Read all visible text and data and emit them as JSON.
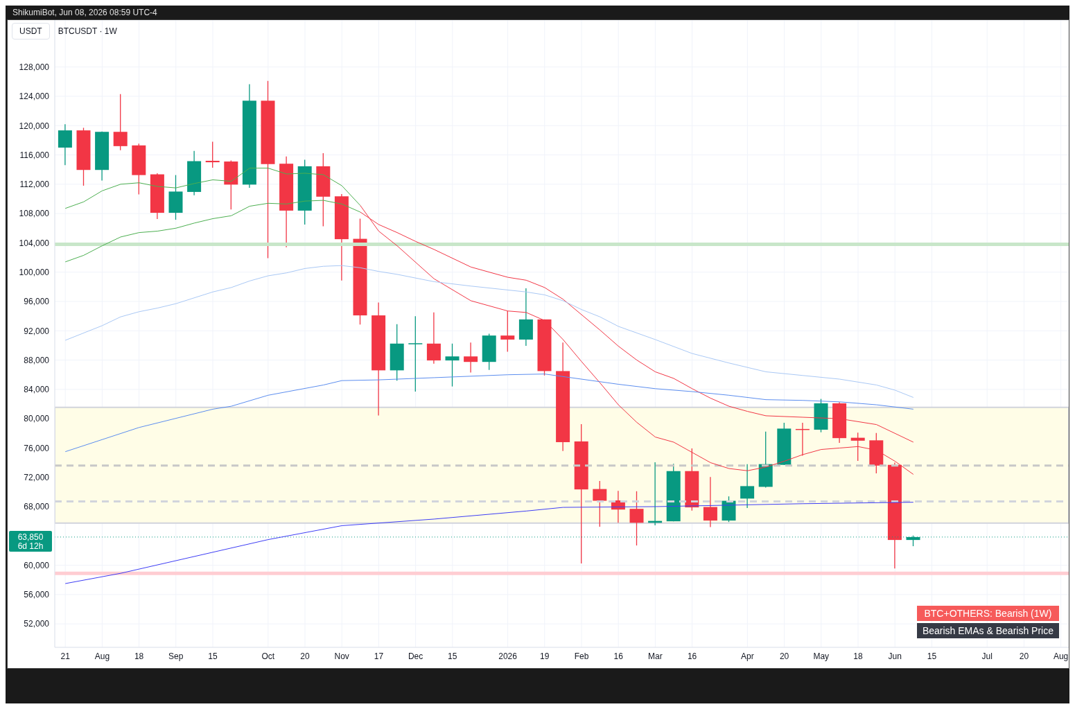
{
  "chart_data": {
    "type": "candlestick",
    "title": "BTCUSDT · 1W",
    "annotations": [
      "ShikumiBot, Jun 08, 2026 08:59 UTC-4",
      "USDT",
      "6d 12h",
      "BTC+OTHERS: Bearish (1W)",
      "Bearish EMAs & Bearish Price"
    ],
    "x": [
      "2025-07-21",
      "2025-07-28",
      "2025-08-04",
      "2025-08-11",
      "2025-08-18",
      "2025-08-25",
      "2025-09-01",
      "2025-09-08",
      "2025-09-15",
      "2025-09-22",
      "2025-09-29",
      "2025-10-06",
      "2025-10-13",
      "2025-10-20",
      "2025-10-27",
      "2025-11-03",
      "2025-11-10",
      "2025-11-17",
      "2025-11-24",
      "2025-12-01",
      "2025-12-08",
      "2025-12-15",
      "2025-12-22",
      "2025-12-29",
      "2026-01-05",
      "2026-01-12",
      "2026-01-19",
      "2026-01-26",
      "2026-02-02",
      "2026-02-09",
      "2026-02-16",
      "2026-02-23",
      "2026-03-02",
      "2026-03-09",
      "2026-03-16",
      "2026-03-23",
      "2026-03-30",
      "2026-04-06",
      "2026-04-13",
      "2026-04-20",
      "2026-04-27",
      "2026-05-04",
      "2026-05-11",
      "2026-05-18",
      "2026-05-25",
      "2026-06-01",
      "2026-06-08"
    ],
    "ohlc": [
      [
        117000,
        120200,
        114600,
        119350
      ],
      [
        119350,
        119700,
        111800,
        113950
      ],
      [
        113950,
        119200,
        112500,
        119150
      ],
      [
        119150,
        124300,
        116650,
        117200
      ],
      [
        117300,
        117550,
        110600,
        113250
      ],
      [
        113350,
        113500,
        107250,
        108100
      ],
      [
        108100,
        113250,
        107150,
        111000
      ],
      [
        110950,
        116550,
        110500,
        115150
      ],
      [
        115200,
        117800,
        114250,
        115000
      ],
      [
        115100,
        115250,
        108550,
        111950
      ],
      [
        111950,
        125650,
        111500,
        123400
      ],
      [
        123400,
        126100,
        101900,
        114750
      ],
      [
        114800,
        115800,
        103400,
        108400
      ],
      [
        108400,
        115350,
        106500,
        114450
      ],
      [
        114450,
        116250,
        106250,
        110300
      ],
      [
        110350,
        110650,
        98850,
        104500
      ],
      [
        104550,
        107300,
        92850,
        94100
      ],
      [
        94100,
        95850,
        80450,
        86600
      ],
      [
        86600,
        92900,
        85200,
        90250
      ],
      [
        90200,
        94000,
        83700,
        90300
      ],
      [
        90250,
        94500,
        87500,
        87950
      ],
      [
        87950,
        90250,
        84400,
        88500
      ],
      [
        88500,
        90400,
        86300,
        87750
      ],
      [
        87750,
        91600,
        86650,
        91350
      ],
      [
        91350,
        94700,
        89150,
        90800
      ],
      [
        90800,
        97800,
        89950,
        93550
      ],
      [
        93550,
        93550,
        85900,
        86500
      ],
      [
        86500,
        90400,
        75600,
        76800
      ],
      [
        76900,
        79250,
        60250,
        70350
      ],
      [
        70400,
        71500,
        65250,
        68800
      ],
      [
        68850,
        70150,
        65800,
        67600
      ],
      [
        67700,
        70100,
        62700,
        65800
      ],
      [
        65800,
        74050,
        65450,
        66050
      ],
      [
        66000,
        73850,
        66000,
        72850
      ],
      [
        72850,
        75950,
        67450,
        67900
      ],
      [
        67950,
        72050,
        65200,
        66100
      ],
      [
        66100,
        69400,
        65900,
        68800
      ],
      [
        69100,
        73800,
        67800,
        70800
      ],
      [
        70700,
        78250,
        70600,
        73800
      ],
      [
        73700,
        79450,
        73700,
        78650
      ],
      [
        78600,
        79450,
        74950,
        78500
      ],
      [
        78500,
        82700,
        78150,
        82100
      ],
      [
        82100,
        82250,
        76700,
        77350
      ],
      [
        77400,
        78100,
        74250,
        77000
      ],
      [
        77050,
        78050,
        72550,
        73600
      ],
      [
        73700,
        74000,
        59550,
        63450
      ],
      [
        63450,
        64050,
        62600,
        63850
      ]
    ],
    "colors": [
      "#089981",
      "#f23645",
      "#089981",
      "#f23645",
      "#f23645",
      "#f23645",
      "#089981",
      "#089981",
      "#f23645",
      "#f23645",
      "#089981",
      "#f23645",
      "#f23645",
      "#089981",
      "#f23645",
      "#f23645",
      "#f23645",
      "#f23645",
      "#089981",
      "#089981",
      "#f23645",
      "#089981",
      "#f23645",
      "#089981",
      "#f23645",
      "#089981",
      "#f23645",
      "#f23645",
      "#f23645",
      "#f23645",
      "#f23645",
      "#f23645",
      "#089981",
      "#089981",
      "#f23645",
      "#f23645",
      "#089981",
      "#089981",
      "#089981",
      "#089981",
      "#f23645",
      "#089981",
      "#f23645",
      "#f23645",
      "#f23645",
      "#f23645",
      "#089981"
    ],
    "series": [
      {
        "type": "line",
        "color": "#4caf50",
        "x": [
          "2025-07-21",
          "2025-07-28",
          "2025-08-04",
          "2025-08-11",
          "2025-08-18",
          "2025-08-25",
          "2025-09-01",
          "2025-09-08",
          "2025-09-15",
          "2025-09-22",
          "2025-09-29",
          "2025-10-06",
          "2025-10-13",
          "2025-10-20",
          "2025-10-27",
          "2025-11-03",
          "2025-11-10"
        ],
        "values": [
          108700,
          109600,
          111100,
          112000,
          112200,
          111700,
          111500,
          112100,
          112600,
          112400,
          114200,
          114200,
          113400,
          113500,
          113300,
          111800,
          109100
        ]
      },
      {
        "type": "line",
        "color": "#4caf50",
        "x": [
          "2025-07-21",
          "2025-07-28",
          "2025-08-04",
          "2025-08-11",
          "2025-08-18",
          "2025-08-25",
          "2025-09-01",
          "2025-09-08",
          "2025-09-15",
          "2025-09-22",
          "2025-09-29",
          "2025-10-06",
          "2025-10-13",
          "2025-10-20",
          "2025-10-27",
          "2025-11-03",
          "2025-11-10"
        ],
        "values": [
          101400,
          102300,
          103600,
          104800,
          105400,
          105600,
          106000,
          106700,
          107300,
          107700,
          109000,
          109400,
          109300,
          109700,
          109800,
          109300,
          108200
        ]
      },
      {
        "type": "line",
        "color": "#f23645",
        "x": [
          "2025-11-10",
          "2025-11-17",
          "2025-11-24",
          "2025-12-08",
          "2025-12-22",
          "2026-01-05",
          "2026-01-12",
          "2026-01-19",
          "2026-01-26",
          "2026-02-02",
          "2026-02-09",
          "2026-02-16",
          "2026-02-23",
          "2026-03-02",
          "2026-03-09",
          "2026-03-16",
          "2026-03-23",
          "2026-03-30",
          "2026-04-06",
          "2026-04-13",
          "2026-04-20",
          "2026-04-27",
          "2026-05-04",
          "2026-05-11",
          "2026-05-18",
          "2026-05-25",
          "2026-06-01",
          "2026-06-08"
        ],
        "values": [
          109100,
          105600,
          103600,
          99100,
          96100,
          94700,
          94500,
          93400,
          90800,
          87800,
          84900,
          81900,
          79500,
          77500,
          76800,
          75400,
          74000,
          73200,
          72900,
          73400,
          74200,
          75100,
          75800,
          76000,
          76200,
          75700,
          74200,
          72400
        ]
      },
      {
        "type": "line",
        "color": "#f23645",
        "x": [
          "2025-11-10",
          "2025-11-17",
          "2025-11-24",
          "2025-12-01",
          "2025-12-08",
          "2025-12-22",
          "2026-01-05",
          "2026-01-12",
          "2026-01-19",
          "2026-01-26",
          "2026-02-02",
          "2026-02-09",
          "2026-02-16",
          "2026-02-23",
          "2026-03-02",
          "2026-03-09",
          "2026-03-16",
          "2026-03-23",
          "2026-03-30",
          "2026-04-06",
          "2026-04-13",
          "2026-04-27",
          "2026-05-11",
          "2026-05-25",
          "2026-06-08"
        ],
        "values": [
          108200,
          106500,
          105400,
          104200,
          103100,
          100700,
          99300,
          98900,
          97900,
          96300,
          94200,
          92100,
          89900,
          88000,
          86400,
          85500,
          84100,
          82800,
          81700,
          81000,
          80400,
          80200,
          80000,
          79200,
          76800
        ]
      },
      {
        "type": "line",
        "color": "#a9c8f5",
        "x": [
          "2025-07-21",
          "2025-08-04",
          "2025-08-11",
          "2025-08-18",
          "2025-08-25",
          "2025-09-01",
          "2025-09-15",
          "2025-09-22",
          "2025-09-29",
          "2025-10-06",
          "2025-10-13",
          "2025-10-20",
          "2025-10-27",
          "2025-11-03",
          "2025-11-10",
          "2025-11-17",
          "2025-11-24",
          "2025-12-08",
          "2025-12-22",
          "2026-01-12",
          "2026-01-19",
          "2026-01-26",
          "2026-02-02",
          "2026-02-09",
          "2026-02-16",
          "2026-03-02",
          "2026-03-16",
          "2026-03-30",
          "2026-04-13",
          "2026-04-27",
          "2026-05-11",
          "2026-05-25",
          "2026-06-01",
          "2026-06-08"
        ],
        "values": [
          90700,
          92700,
          93900,
          94600,
          95100,
          95700,
          97300,
          97900,
          98800,
          99500,
          99900,
          100500,
          100800,
          100900,
          100600,
          100100,
          99700,
          98700,
          98100,
          97300,
          96900,
          96100,
          94900,
          93900,
          92600,
          90800,
          88900,
          87600,
          86400,
          85900,
          85400,
          84600,
          83900,
          82900
        ]
      },
      {
        "type": "line",
        "color": "#5b8def",
        "x": [
          "2025-07-21",
          "2025-08-18",
          "2025-09-15",
          "2025-09-22",
          "2025-10-06",
          "2025-10-27",
          "2025-11-03",
          "2025-11-17",
          "2025-12-08",
          "2026-01-05",
          "2026-01-19",
          "2026-02-02",
          "2026-02-16",
          "2026-03-02",
          "2026-03-16",
          "2026-03-30",
          "2026-04-13",
          "2026-04-27",
          "2026-05-11",
          "2026-05-25",
          "2026-06-08"
        ],
        "values": [
          75500,
          78800,
          81300,
          81700,
          83200,
          84600,
          85200,
          85300,
          85600,
          86000,
          86100,
          85400,
          84700,
          84100,
          83700,
          83200,
          82600,
          82500,
          82300,
          81900,
          81300
        ]
      },
      {
        "type": "line",
        "color": "#3d3df5",
        "x": [
          "2025-07-21",
          "2025-08-11",
          "2025-10-06",
          "2025-11-03",
          "2025-12-08",
          "2026-01-12",
          "2026-01-26",
          "2026-03-02",
          "2026-04-27",
          "2026-06-08"
        ],
        "values": [
          57500,
          58900,
          63500,
          65400,
          66300,
          67400,
          67900,
          68000,
          68400,
          68600
        ]
      }
    ],
    "xlim": [
      "2025-07-17",
      "2026-08-06"
    ],
    "xticks": [
      {
        "value": "2025-07-21",
        "label": "21"
      },
      {
        "value": "2025-08-04",
        "label": "Aug"
      },
      {
        "value": "2025-08-18",
        "label": "18"
      },
      {
        "value": "2025-09-01",
        "label": "Sep"
      },
      {
        "value": "2025-09-15",
        "label": "15"
      },
      {
        "value": "2025-10-06",
        "label": "Oct"
      },
      {
        "value": "2025-10-20",
        "label": "20"
      },
      {
        "value": "2025-11-03",
        "label": "Nov"
      },
      {
        "value": "2025-11-17",
        "label": "17"
      },
      {
        "value": "2025-12-01",
        "label": "Dec"
      },
      {
        "value": "2025-12-15",
        "label": "15"
      },
      {
        "value": "2026-01-05",
        "label": "2026"
      },
      {
        "value": "2026-01-19",
        "label": "19"
      },
      {
        "value": "2026-02-02",
        "label": "Feb"
      },
      {
        "value": "2026-02-16",
        "label": "16"
      },
      {
        "value": "2026-03-02",
        "label": "Mar"
      },
      {
        "value": "2026-03-16",
        "label": "16"
      },
      {
        "value": "2026-04-06",
        "label": "Apr"
      },
      {
        "value": "2026-04-20",
        "label": "20"
      },
      {
        "value": "2026-05-04",
        "label": "May"
      },
      {
        "value": "2026-05-18",
        "label": "18"
      },
      {
        "value": "2026-06-01",
        "label": "Jun"
      },
      {
        "value": "2026-06-15",
        "label": "15"
      },
      {
        "value": "2026-07-06",
        "label": "Jul"
      },
      {
        "value": "2026-07-20",
        "label": "20"
      },
      {
        "value": "2026-08-03",
        "label": "Aug"
      }
    ],
    "ylim": [
      48800,
      134400
    ],
    "yticks": [
      {
        "value": 52000,
        "label": "52,000"
      },
      {
        "value": 56000,
        "label": "56,000"
      },
      {
        "value": 60000,
        "label": "60,000"
      },
      {
        "value": 68000,
        "label": "68,000"
      },
      {
        "value": 72000,
        "label": "72,000"
      },
      {
        "value": 76000,
        "label": "76,000"
      },
      {
        "value": 80000,
        "label": "80,000"
      },
      {
        "value": 84000,
        "label": "84,000"
      },
      {
        "value": 88000,
        "label": "88,000"
      },
      {
        "value": 92000,
        "label": "92,000"
      },
      {
        "value": 96000,
        "label": "96,000"
      },
      {
        "value": 100000,
        "label": "100,000"
      },
      {
        "value": 104000,
        "label": "104,000"
      },
      {
        "value": 108000,
        "label": "108,000"
      },
      {
        "value": 112000,
        "label": "112,000"
      },
      {
        "value": 116000,
        "label": "116,000"
      },
      {
        "value": 120000,
        "label": "120,000"
      },
      {
        "value": 124000,
        "label": "124,000"
      },
      {
        "value": 128000,
        "label": "128,000"
      }
    ],
    "bands": [
      {
        "axis": "y",
        "from": 65760,
        "to": 81550,
        "color": "#fffde7"
      }
    ],
    "ref_lines": [
      {
        "axis": "y",
        "value": 103800,
        "color": "#c8e6c9",
        "line_style": "solid"
      },
      {
        "axis": "y",
        "value": 58900,
        "color": "#ffcdd2",
        "line_style": "solid"
      },
      {
        "axis": "y",
        "value": 68700,
        "color": "#d1d4dc",
        "line_style": "dashed"
      },
      {
        "axis": "y",
        "value": 73600,
        "color": "#c8c8c8",
        "line_style": "dashed"
      },
      {
        "axis": "y",
        "value": 63850,
        "label": "63,850",
        "color": "#089981",
        "line_style": "dotted"
      }
    ],
    "grid": true
  }
}
